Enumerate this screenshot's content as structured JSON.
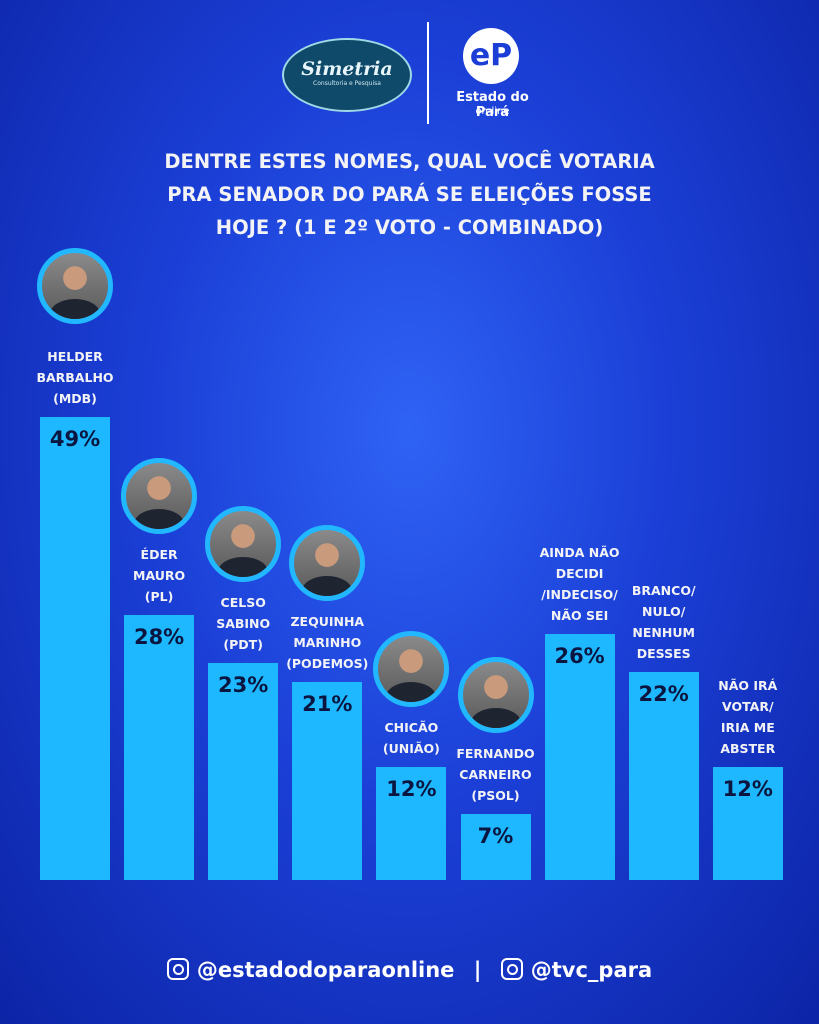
{
  "header": {
    "brand_left": "Simetria",
    "brand_left_sub": "Consultoria e Pesquisa",
    "brand_right": "Estado do Pará",
    "brand_right_sub": "on-line"
  },
  "chart_data": {
    "type": "bar",
    "title": "DENTRE ESTES NOMES, QUAL VOCÊ VOTARIA\nPRA SENADOR DO PARÁ SE ELEIÇÕES FOSSE\nHOJE ? (1 E 2º VOTO - COMBINADO)",
    "categories": [
      "HELDER\nBARBALHO\n(MDB)",
      "ÉDER\nMAURO\n(PL)",
      "CELSO\nSABINO\n(PDT)",
      "ZEQUINHA\nMARINHO\n(PODEMOS)",
      "CHICÃO\n(UNIÃO)",
      "FERNANDO\nCARNEIRO\n(PSOL)",
      "AINDA NÃO\nDECIDI\n/INDECISO/\nNÃO SEI",
      "BRANCO/\nNULO/\nNENHUM\nDESSES",
      "NÃO IRÁ\nVOTAR/\nIRIA ME\nABSTER"
    ],
    "values": [
      49,
      28,
      23,
      21,
      12,
      7,
      26,
      22,
      12
    ],
    "value_labels": [
      "49%",
      "28%",
      "23%",
      "21%",
      "12%",
      "7%",
      "26%",
      "22%",
      "12%"
    ],
    "color": "#1db8ff",
    "ylim": [
      0,
      50
    ]
  },
  "footer": {
    "handle_left": "@estadodoparaonline",
    "separator": "|",
    "handle_right": "@tvc_para"
  }
}
